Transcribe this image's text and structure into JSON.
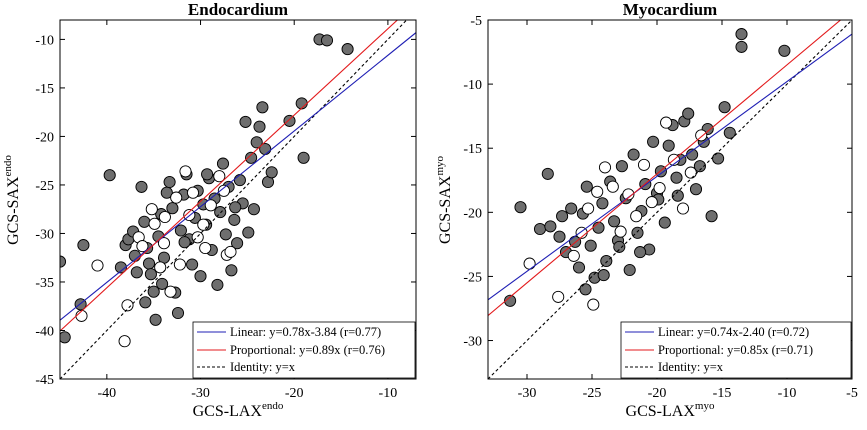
{
  "figure": {
    "panels": [
      {
        "id": "endo",
        "chart_data": {
          "type": "scatter",
          "title": "Endocardium",
          "xlabel": "GCS-LAX",
          "xlabel_sup": "endo",
          "ylabel": "GCS-SAX",
          "ylabel_sup": "endo",
          "xlim": [
            -45,
            -7
          ],
          "ylim": [
            -45,
            -8
          ],
          "xticks": [
            -40,
            -30,
            -20,
            -10
          ],
          "yticks": [
            -45,
            -40,
            -35,
            -30,
            -25,
            -20,
            -15,
            -10
          ],
          "xtick_labels": [
            "-40",
            "-30",
            "-20",
            "-10"
          ],
          "ytick_labels": [
            "-45",
            "-40",
            "-35",
            "-30",
            "-25",
            "-20",
            "-15",
            "-10"
          ],
          "grid": false,
          "legend_position": "bottom-right",
          "legend": [
            {
              "label": "Linear: y=0.78x-3.84  (r=0.77)",
              "color": "#1f1fb4",
              "style": "solid"
            },
            {
              "label": "Proportional: y=0.89x  (r=0.76)",
              "color": "#e31a1c",
              "style": "solid"
            },
            {
              "label": "Identity: y=x",
              "color": "#000000",
              "style": "dashed"
            }
          ],
          "lines": {
            "linear": {
              "slope": 0.78,
              "intercept": -3.84,
              "color": "#1f1fb4"
            },
            "proportional": {
              "slope": 0.89,
              "intercept": 0,
              "color": "#e31a1c"
            },
            "identity": {
              "slope": 1,
              "intercept": 0,
              "color": "#000000"
            }
          },
          "series": [
            {
              "name": "Group A (gray)",
              "color": "#6e6e6e",
              "points": [
                [
                  -45,
                  -32.9
                ],
                [
                  -44.5,
                  -40.7
                ],
                [
                  -42.8,
                  -37.3
                ],
                [
                  -42.5,
                  -31.2
                ],
                [
                  -39.7,
                  -24
                ],
                [
                  -38.5,
                  -33.5
                ],
                [
                  -38,
                  -31.2
                ],
                [
                  -37.7,
                  -30.6
                ],
                [
                  -37.2,
                  -29.8
                ],
                [
                  -37,
                  -32.3
                ],
                [
                  -36.8,
                  -34
                ],
                [
                  -36.3,
                  -25.2
                ],
                [
                  -36,
                  -28.8
                ],
                [
                  -35.7,
                  -31.5
                ],
                [
                  -35.5,
                  -33.1
                ],
                [
                  -35.3,
                  -34.2
                ],
                [
                  -35,
                  -36
                ],
                [
                  -34.8,
                  -38.9
                ],
                [
                  -34.5,
                  -30.3
                ],
                [
                  -34.2,
                  -28
                ],
                [
                  -33.9,
                  -32.5
                ],
                [
                  -33.6,
                  -25.8
                ],
                [
                  -33.3,
                  -24.7
                ],
                [
                  -33,
                  -27.4
                ],
                [
                  -32.7,
                  -36.1
                ],
                [
                  -32.4,
                  -38.2
                ],
                [
                  -32.1,
                  -29.7
                ],
                [
                  -31.8,
                  -26
                ],
                [
                  -31.5,
                  -23.9
                ],
                [
                  -31.2,
                  -30.6
                ],
                [
                  -30.9,
                  -33.2
                ],
                [
                  -30.6,
                  -28.4
                ],
                [
                  -30.3,
                  -25.6
                ],
                [
                  -30,
                  -34.4
                ],
                [
                  -29.7,
                  -27
                ],
                [
                  -29.4,
                  -29.1
                ],
                [
                  -29.1,
                  -24.3
                ],
                [
                  -28.8,
                  -31.7
                ],
                [
                  -28.5,
                  -26.4
                ],
                [
                  -28.2,
                  -35.3
                ],
                [
                  -27.9,
                  -27.8
                ],
                [
                  -27.6,
                  -22.8
                ],
                [
                  -27.3,
                  -30.1
                ],
                [
                  -27,
                  -25.2
                ],
                [
                  -26.7,
                  -33.8
                ],
                [
                  -26.4,
                  -28.6
                ],
                [
                  -26.1,
                  -31
                ],
                [
                  -25.8,
                  -24.5
                ],
                [
                  -25.5,
                  -26.9
                ],
                [
                  -25.2,
                  -18.5
                ],
                [
                  -24.9,
                  -29.9
                ],
                [
                  -24.6,
                  -22.2
                ],
                [
                  -24.3,
                  -27.5
                ],
                [
                  -24,
                  -20.6
                ],
                [
                  -23.7,
                  -19
                ],
                [
                  -23.4,
                  -17
                ],
                [
                  -23.1,
                  -21.3
                ],
                [
                  -22.8,
                  -24.7
                ],
                [
                  -22.4,
                  -23.7
                ],
                [
                  -20.5,
                  -18.4
                ],
                [
                  -19.2,
                  -16.6
                ],
                [
                  -19,
                  -22.2
                ],
                [
                  -17.3,
                  -10
                ],
                [
                  -16.5,
                  -10.1
                ],
                [
                  -14.3,
                  -11
                ],
                [
                  -35.9,
                  -37.1
                ],
                [
                  -34.1,
                  -35.2
                ],
                [
                  -26.3,
                  -27.3
                ],
                [
                  -29.3,
                  -23.9
                ],
                [
                  -31.7,
                  -30.9
                ]
              ]
            },
            {
              "name": "Group B (white)",
              "color": "#ffffff",
              "points": [
                [
                  -42.7,
                  -38.5
                ],
                [
                  -41,
                  -33.3
                ],
                [
                  -38.1,
                  -41.1
                ],
                [
                  -37.8,
                  -37.4
                ],
                [
                  -36.6,
                  -30.4
                ],
                [
                  -35.2,
                  -27.5
                ],
                [
                  -34.9,
                  -29
                ],
                [
                  -34.3,
                  -33.5
                ],
                [
                  -33.8,
                  -28.3
                ],
                [
                  -33.2,
                  -36
                ],
                [
                  -32.6,
                  -26.3
                ],
                [
                  -32.2,
                  -33.2
                ],
                [
                  -31.6,
                  -23.6
                ],
                [
                  -31.2,
                  -28.1
                ],
                [
                  -30.8,
                  -25.8
                ],
                [
                  -30.3,
                  -30.4
                ],
                [
                  -29.7,
                  -29.1
                ],
                [
                  -29.5,
                  -31.5
                ],
                [
                  -28.9,
                  -27.1
                ],
                [
                  -28,
                  -24.1
                ],
                [
                  -27.5,
                  -25.6
                ],
                [
                  -27.2,
                  -32.2
                ],
                [
                  -26.8,
                  -31.9
                ],
                [
                  -36.2,
                  -31.3
                ],
                [
                  -33.9,
                  -31
                ]
              ]
            }
          ]
        }
      },
      {
        "id": "myo",
        "chart_data": {
          "type": "scatter",
          "title": "Myocardium",
          "xlabel": "GCS-LAX",
          "xlabel_sup": "myo",
          "ylabel": "GCS-SAX",
          "ylabel_sup": "myo",
          "xlim": [
            -33,
            -5
          ],
          "ylim": [
            -33,
            -5
          ],
          "xticks": [
            -30,
            -25,
            -20,
            -15,
            -10,
            -5
          ],
          "yticks": [
            -30,
            -25,
            -20,
            -15,
            -10,
            -5
          ],
          "xtick_labels": [
            "-30",
            "-25",
            "-20",
            "-15",
            "-10",
            "-5"
          ],
          "ytick_labels": [
            "-30",
            "-25",
            "-20",
            "-15",
            "-10",
            "-5"
          ],
          "grid": false,
          "legend_position": "bottom-right",
          "legend": [
            {
              "label": "Linear: y=0.74x-2.40  (r=0.72)",
              "color": "#1f1fb4",
              "style": "solid"
            },
            {
              "label": "Proportional: y=0.85x  (r=0.71)",
              "color": "#e31a1c",
              "style": "solid"
            },
            {
              "label": "Identity: y=x",
              "color": "#000000",
              "style": "dashed"
            }
          ],
          "lines": {
            "linear": {
              "slope": 0.74,
              "intercept": -2.4,
              "color": "#1f1fb4"
            },
            "proportional": {
              "slope": 0.85,
              "intercept": 0,
              "color": "#e31a1c"
            },
            "identity": {
              "slope": 1,
              "intercept": 0,
              "color": "#000000"
            }
          },
          "series": [
            {
              "name": "Group A (gray)",
              "color": "#6e6e6e",
              "points": [
                [
                  -31.3,
                  -26.9
                ],
                [
                  -30.5,
                  -19.6
                ],
                [
                  -29,
                  -21.3
                ],
                [
                  -28.4,
                  -17
                ],
                [
                  -28.2,
                  -21.1
                ],
                [
                  -27.5,
                  -21.9
                ],
                [
                  -27.3,
                  -20.3
                ],
                [
                  -27,
                  -23.1
                ],
                [
                  -26.6,
                  -19.7
                ],
                [
                  -26.3,
                  -22.3
                ],
                [
                  -26,
                  -24.3
                ],
                [
                  -25.7,
                  -20.1
                ],
                [
                  -25.4,
                  -18
                ],
                [
                  -25.1,
                  -22.6
                ],
                [
                  -24.8,
                  -25.1
                ],
                [
                  -24.5,
                  -21.2
                ],
                [
                  -24.2,
                  -19.3
                ],
                [
                  -23.9,
                  -23.8
                ],
                [
                  -23.6,
                  -17.6
                ],
                [
                  -23.3,
                  -20.7
                ],
                [
                  -23,
                  -22.2
                ],
                [
                  -22.7,
                  -16.4
                ],
                [
                  -22.4,
                  -18.9
                ],
                [
                  -22.1,
                  -24.5
                ],
                [
                  -21.8,
                  -15.5
                ],
                [
                  -21.5,
                  -21.6
                ],
                [
                  -21.2,
                  -19.9
                ],
                [
                  -20.9,
                  -17.8
                ],
                [
                  -20.6,
                  -22.9
                ],
                [
                  -20.3,
                  -14.5
                ],
                [
                  -20,
                  -18.5
                ],
                [
                  -19.7,
                  -16.8
                ],
                [
                  -19.4,
                  -20.8
                ],
                [
                  -19.1,
                  -14.8
                ],
                [
                  -18.8,
                  -13.2
                ],
                [
                  -18.5,
                  -17.3
                ],
                [
                  -18.2,
                  -15.9
                ],
                [
                  -17.9,
                  -12.9
                ],
                [
                  -17.6,
                  -12.3
                ],
                [
                  -17.3,
                  -15.5
                ],
                [
                  -17,
                  -18.2
                ],
                [
                  -16.7,
                  -16.4
                ],
                [
                  -16.4,
                  -14.5
                ],
                [
                  -16.1,
                  -13.5
                ],
                [
                  -15.8,
                  -20.3
                ],
                [
                  -15.3,
                  -15.8
                ],
                [
                  -14.8,
                  -11.8
                ],
                [
                  -14.4,
                  -13.8
                ],
                [
                  -13.5,
                  -7.1
                ],
                [
                  -13.5,
                  -6.1
                ],
                [
                  -10.2,
                  -7.4
                ],
                [
                  -25.5,
                  -26
                ],
                [
                  -24.1,
                  -24.9
                ],
                [
                  -22.9,
                  -22.7
                ],
                [
                  -21.3,
                  -23.1
                ],
                [
                  -19.9,
                  -19
                ],
                [
                  -18.4,
                  -18.7
                ]
              ]
            },
            {
              "name": "Group B (white)",
              "color": "#ffffff",
              "points": [
                [
                  -29.8,
                  -24
                ],
                [
                  -27.6,
                  -26.6
                ],
                [
                  -26.4,
                  -23.4
                ],
                [
                  -25.8,
                  -21.6
                ],
                [
                  -25.3,
                  -19.7
                ],
                [
                  -24.9,
                  -27.2
                ],
                [
                  -24.6,
                  -18.4
                ],
                [
                  -24,
                  -16.5
                ],
                [
                  -23.4,
                  -18
                ],
                [
                  -22.8,
                  -21.5
                ],
                [
                  -22.2,
                  -18.6
                ],
                [
                  -21.6,
                  -20.3
                ],
                [
                  -21,
                  -16.3
                ],
                [
                  -20.4,
                  -19.2
                ],
                [
                  -19.8,
                  -18.1
                ],
                [
                  -19.3,
                  -13
                ],
                [
                  -18.7,
                  -15.9
                ],
                [
                  -18,
                  -19.7
                ],
                [
                  -17.4,
                  -16.9
                ],
                [
                  -16.6,
                  -14
                ]
              ]
            }
          ]
        }
      }
    ]
  }
}
